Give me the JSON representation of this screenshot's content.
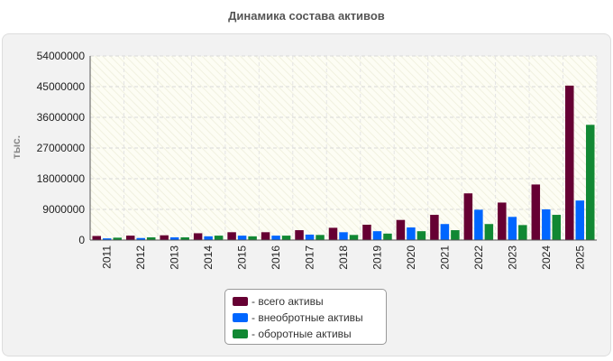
{
  "chart_data": {
    "type": "bar",
    "title": "Динамика состава активов",
    "ylabel": "тыс.",
    "xlabel": "",
    "ylim": [
      0,
      54000000
    ],
    "yticks": [
      0,
      9000000,
      18000000,
      27000000,
      36000000,
      45000000,
      54000000
    ],
    "ytick_labels": [
      "0",
      "9000000",
      "18000000",
      "27000000",
      "36000000",
      "45000000",
      "54000000"
    ],
    "categories": [
      "2011",
      "2012",
      "2013",
      "2014",
      "2015",
      "2016",
      "2017",
      "2018",
      "2019",
      "2020",
      "2021",
      "2022",
      "2023",
      "2024",
      "2025"
    ],
    "series": [
      {
        "name": "- всего активы",
        "color": "#660033",
        "values": [
          1200000,
          1300000,
          1400000,
          2000000,
          2300000,
          2300000,
          2900000,
          3600000,
          4500000,
          5900000,
          7400000,
          13700000,
          11000000,
          16300000,
          45300000
        ]
      },
      {
        "name": "- внеобротные активы",
        "color": "#0066ff",
        "values": [
          500000,
          600000,
          800000,
          1100000,
          1300000,
          1300000,
          1600000,
          2300000,
          2600000,
          3700000,
          4700000,
          8900000,
          6800000,
          9000000,
          11600000
        ]
      },
      {
        "name": "- оборотные активы",
        "color": "#118833",
        "values": [
          700000,
          800000,
          800000,
          1300000,
          1100000,
          1300000,
          1500000,
          1500000,
          1900000,
          2600000,
          2900000,
          4700000,
          4400000,
          7400000,
          33800000
        ]
      }
    ],
    "grid": true,
    "legend_position": "bottom"
  }
}
